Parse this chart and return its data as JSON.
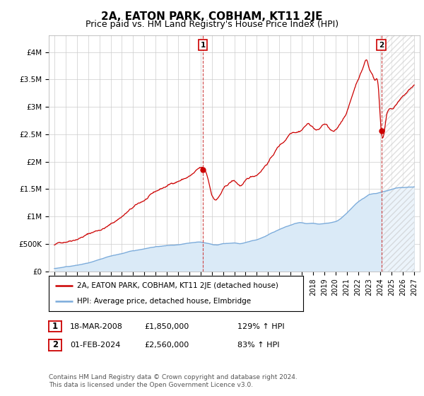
{
  "title": "2A, EATON PARK, COBHAM, KT11 2JE",
  "subtitle": "Price paid vs. HM Land Registry's House Price Index (HPI)",
  "ylabel_ticks": [
    "£0",
    "£500K",
    "£1M",
    "£1.5M",
    "£2M",
    "£2.5M",
    "£3M",
    "£3.5M",
    "£4M"
  ],
  "ytick_values": [
    0,
    500000,
    1000000,
    1500000,
    2000000,
    2500000,
    3000000,
    3500000,
    4000000
  ],
  "ylim": [
    0,
    4300000
  ],
  "xlim_start": 1994.5,
  "xlim_end": 2027.5,
  "xtick_years": [
    1995,
    1996,
    1997,
    1998,
    1999,
    2000,
    2001,
    2002,
    2003,
    2004,
    2005,
    2006,
    2007,
    2008,
    2009,
    2010,
    2011,
    2012,
    2013,
    2014,
    2015,
    2016,
    2017,
    2018,
    2019,
    2020,
    2021,
    2022,
    2023,
    2024,
    2025,
    2026,
    2027
  ],
  "red_line_color": "#cc0000",
  "blue_line_color": "#7aabdb",
  "hpi_fill_color": "#daeaf7",
  "background_color": "#ffffff",
  "grid_color": "#cccccc",
  "annotation_box_color": "#cc0000",
  "marker1_date": 2008.21,
  "marker1_value": 1850000,
  "marker2_date": 2024.08,
  "marker2_value": 2560000,
  "marker1_label": "1",
  "marker2_label": "2",
  "legend_line1": "2A, EATON PARK, COBHAM, KT11 2JE (detached house)",
  "legend_line2": "HPI: Average price, detached house, Elmbridge",
  "table_row1": [
    "1",
    "18-MAR-2008",
    "£1,850,000",
    "129% ↑ HPI"
  ],
  "table_row2": [
    "2",
    "01-FEB-2024",
    "£2,560,000",
    "83% ↑ HPI"
  ],
  "footnote": "Contains HM Land Registry data © Crown copyright and database right 2024.\nThis data is licensed under the Open Government Licence v3.0.",
  "title_fontsize": 11,
  "subtitle_fontsize": 9,
  "tick_fontsize": 7.5
}
